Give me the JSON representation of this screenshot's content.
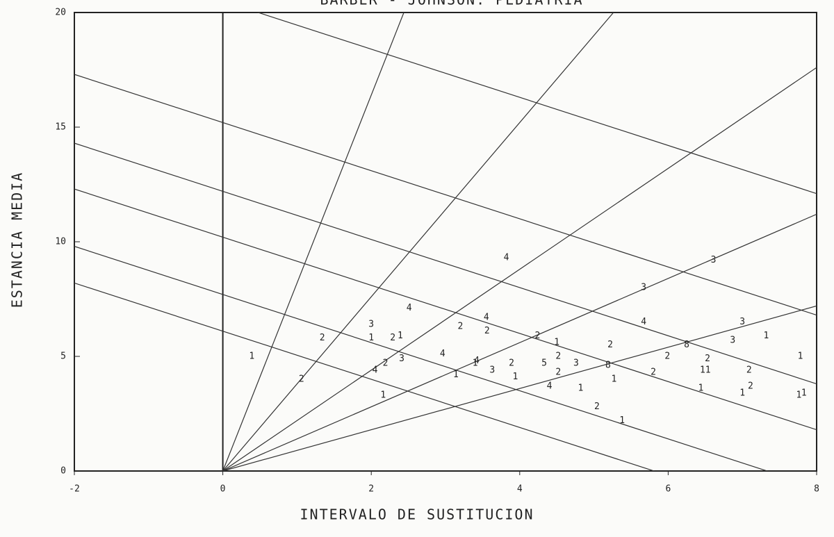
{
  "chart_data": {
    "type": "scatter",
    "title": "BARBER - JOHNSON: PEDIATRIA",
    "x_label": "INTERVALO DE SUSTITUCION",
    "y_label": "ESTANCIA MEDIA",
    "xlim": [
      -2,
      8
    ],
    "ylim": [
      0,
      20
    ],
    "xticks": [
      -2,
      0,
      2,
      4,
      6,
      8
    ],
    "yticks": [
      0,
      5,
      10,
      15,
      20
    ],
    "color": "#222222",
    "occupancy_slopes": [
      8.2,
      3.8,
      2.2,
      1.4,
      0.9
    ],
    "turnover_intercepts": [
      6.1,
      7.7,
      10.2,
      12.2,
      15.2,
      20.5
    ],
    "turnover_slope": -1.05,
    "x": [
      0.39,
      1.06,
      1.34,
      2.0,
      2.0,
      2.29,
      2.39,
      2.51,
      2.19,
      2.41,
      2.05,
      2.16,
      2.96,
      3.2,
      3.14,
      3.42,
      3.4,
      3.55,
      3.56,
      3.63,
      3.89,
      3.94,
      3.82,
      4.24,
      4.33,
      4.5,
      4.52,
      4.52,
      4.4,
      4.76,
      4.82,
      5.04,
      5.19,
      5.22,
      5.27,
      5.38,
      5.67,
      5.67,
      5.8,
      5.99,
      6.25,
      6.53,
      6.5,
      6.44,
      6.61,
      6.87,
      7.0,
      7.09,
      7.0,
      7.11,
      7.32,
      7.78,
      7.76,
      7.83
    ],
    "values": [
      5.0,
      4.0,
      5.8,
      6.4,
      5.8,
      5.8,
      5.9,
      7.1,
      4.7,
      4.9,
      4.4,
      3.3,
      5.1,
      6.3,
      4.2,
      4.8,
      4.7,
      6.7,
      6.1,
      4.4,
      4.7,
      4.1,
      9.3,
      5.9,
      4.7,
      5.6,
      5.0,
      4.3,
      3.7,
      4.7,
      3.6,
      2.8,
      4.6,
      5.5,
      4.0,
      2.2,
      8.0,
      6.5,
      4.3,
      5.0,
      5.5,
      4.9,
      4.4,
      3.6,
      9.2,
      5.7,
      6.5,
      4.4,
      3.4,
      3.7,
      5.9,
      5.0,
      3.3,
      3.4
    ],
    "counts": [
      1,
      2,
      2,
      3,
      1,
      2,
      1,
      4,
      2,
      3,
      4,
      1,
      4,
      2,
      1,
      4,
      1,
      4,
      2,
      3,
      2,
      1,
      4,
      2,
      5,
      1,
      2,
      2,
      4,
      3,
      1,
      2,
      8,
      2,
      1,
      1,
      3,
      4,
      2,
      2,
      8,
      2,
      11,
      1,
      3,
      3,
      3,
      2,
      1,
      2,
      1,
      1,
      1,
      1
    ]
  }
}
